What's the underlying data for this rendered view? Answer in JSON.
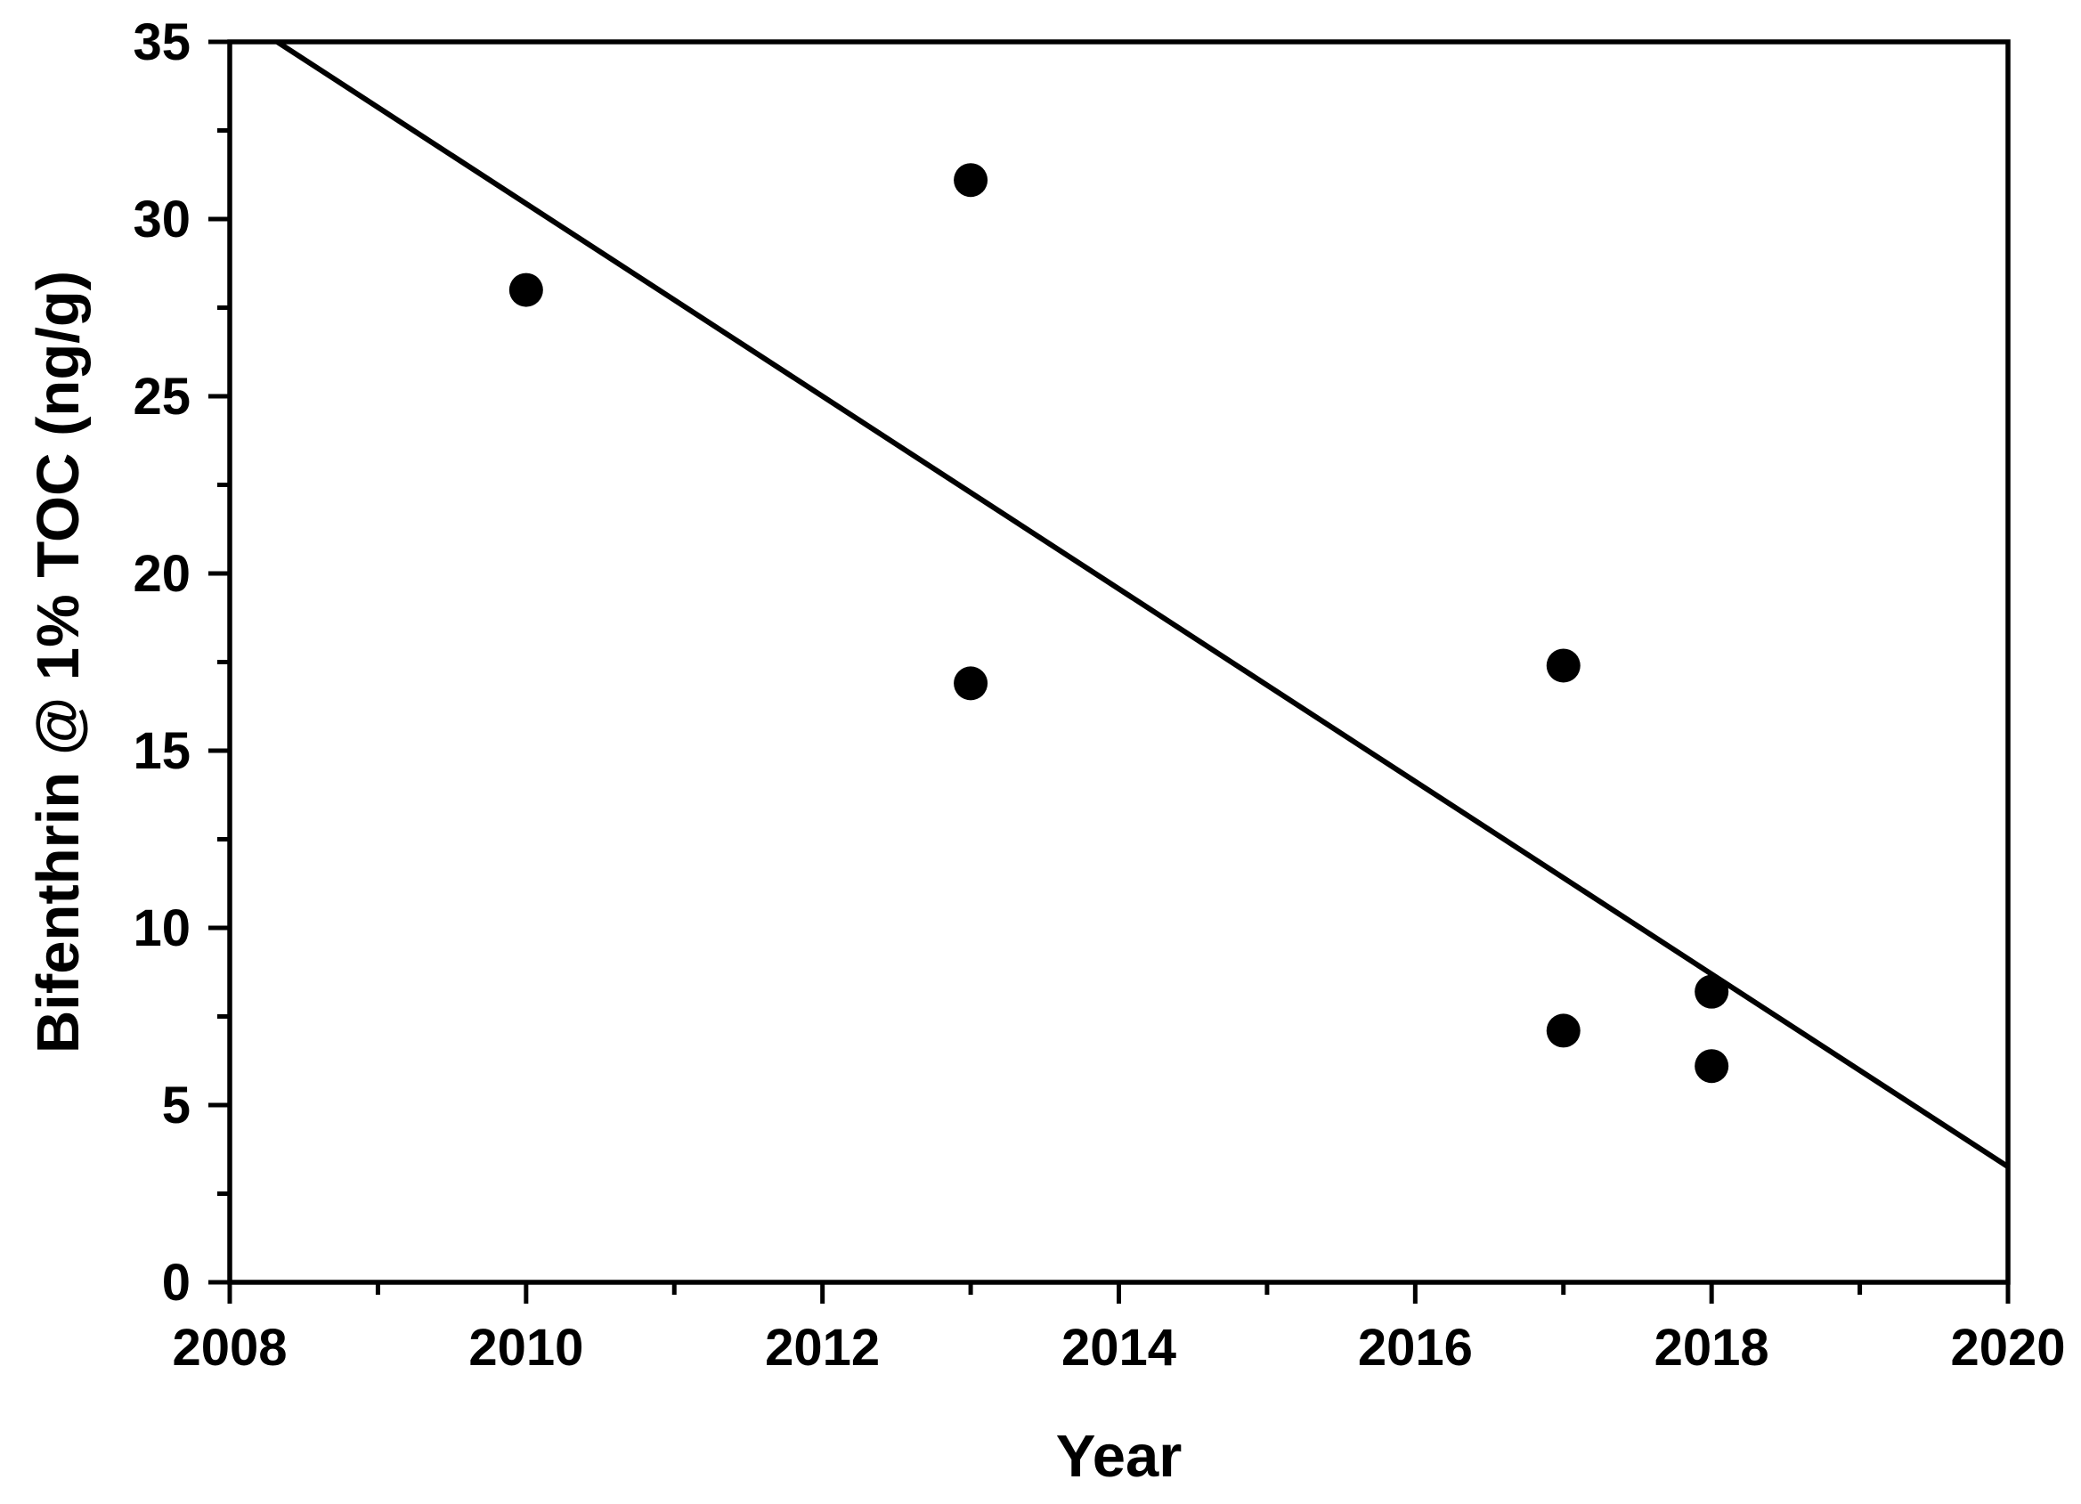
{
  "figure": {
    "background_color": "#ffffff",
    "foreground_color": "#000000"
  },
  "chart_data": {
    "type": "scatter",
    "title": "",
    "xlabel": "Year",
    "ylabel": "Bifenthrin @ 1% TOC (ng/g)",
    "xlim": [
      2008,
      2020
    ],
    "ylim": [
      0,
      35
    ],
    "x_major_ticks": [
      2008,
      2010,
      2012,
      2014,
      2016,
      2018,
      2020
    ],
    "x_minor_ticks": [
      2009,
      2011,
      2013,
      2015,
      2017,
      2019
    ],
    "y_major_ticks": [
      0,
      5,
      10,
      15,
      20,
      25,
      30,
      35
    ],
    "y_minor_ticks": [
      2.5,
      7.5,
      12.5,
      17.5,
      22.5,
      27.5,
      32.5
    ],
    "points": [
      {
        "x": 2010,
        "y": 28.0
      },
      {
        "x": 2013,
        "y": 31.1
      },
      {
        "x": 2013,
        "y": 16.9
      },
      {
        "x": 2017,
        "y": 17.4
      },
      {
        "x": 2017,
        "y": 7.1
      },
      {
        "x": 2018,
        "y": 8.2
      },
      {
        "x": 2018,
        "y": 6.1
      }
    ],
    "trend_line": {
      "x1": 2008.32,
      "y1": 35.0,
      "x2": 2020.0,
      "y2": 3.26
    },
    "marker": {
      "shape": "circle",
      "color": "#000000",
      "radius_px": 19
    },
    "grid": false,
    "legend": false,
    "frame": "box"
  }
}
